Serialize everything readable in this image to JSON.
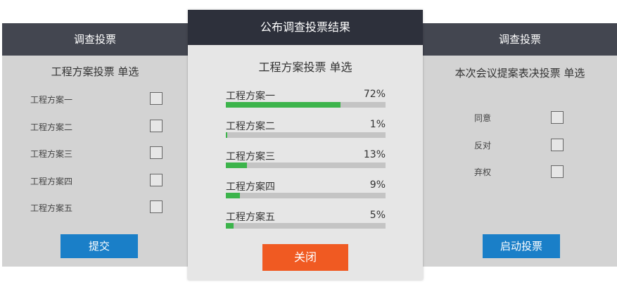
{
  "left_panel": {
    "header": "调查投票",
    "title": "工程方案投票  单选",
    "options": [
      "工程方案一",
      "工程方案二",
      "工程方案三",
      "工程方案四",
      "工程方案五"
    ],
    "submit_label": "提交"
  },
  "center_panel": {
    "header": "公布调查投票结果",
    "title": "工程方案投票  单选",
    "results": [
      {
        "label": "工程方案一",
        "percent_text": "72%",
        "percent": 72
      },
      {
        "label": "工程方案二",
        "percent_text": "1%",
        "percent": 1
      },
      {
        "label": "工程方案三",
        "percent_text": "13%",
        "percent": 13
      },
      {
        "label": "工程方案四",
        "percent_text": "9%",
        "percent": 9
      },
      {
        "label": "工程方案五",
        "percent_text": "5%",
        "percent": 5
      }
    ],
    "close_label": "关闭"
  },
  "right_panel": {
    "header": "调查投票",
    "title": "本次会议提案表决投票  单选",
    "options": [
      "同意",
      "反对",
      "弃权"
    ],
    "start_label": "启动投票"
  },
  "colors": {
    "header": "#434650",
    "center_header": "#2d303b",
    "primary_button": "#1a7fc8",
    "close_button": "#f05a22",
    "bar_fill": "#3cb44b",
    "bar_track": "#c4c4c4"
  }
}
